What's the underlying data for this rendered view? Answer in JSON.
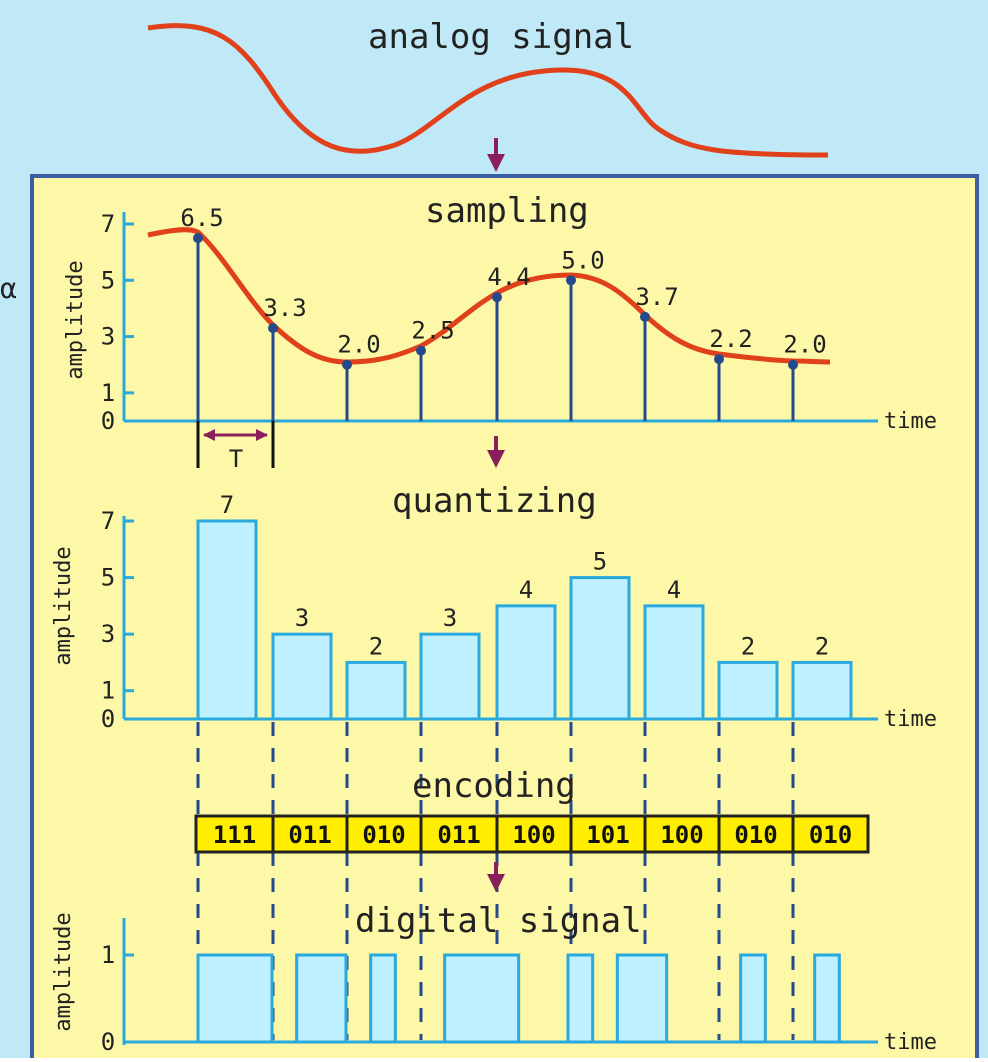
{
  "title_analog": "analog signal",
  "stray_glyph": "α",
  "colors": {
    "top_background": "#bfe9f6",
    "panel_background": "#fdf8a8",
    "panel_border": "#3a5fa5",
    "curve": "#e0401a",
    "stem": "#244a8c",
    "bar_fill": "#bff0ff",
    "bar_stroke": "#2aa9dc",
    "code_fill": "#ffee00",
    "arrow": "#8a1f5c"
  },
  "sampling": {
    "title": "sampling",
    "ylabel": "amplitude",
    "xlabel": "time",
    "yticks": [
      "7",
      "5",
      "3",
      "1",
      "0"
    ],
    "period_label": "T",
    "values": [
      "6.5",
      "3.3",
      "2.0",
      "2.5",
      "4.4",
      "5.0",
      "3.7",
      "2.2",
      "2.0"
    ]
  },
  "quantizing": {
    "title": "quantizing",
    "ylabel": "amplitude",
    "xlabel": "time",
    "yticks": [
      "7",
      "5",
      "3",
      "1",
      "0"
    ],
    "values": [
      "7",
      "3",
      "2",
      "3",
      "4",
      "5",
      "4",
      "2",
      "2"
    ]
  },
  "encoding": {
    "title": "encoding",
    "codes": [
      "111",
      "011",
      "010",
      "011",
      "100",
      "101",
      "100",
      "010",
      "010"
    ]
  },
  "digital": {
    "title": "digital signal",
    "ylabel": "amplitude",
    "xlabel": "time",
    "yticks": [
      "1",
      "0"
    ]
  },
  "chart_data": [
    {
      "type": "line",
      "title": "sampling",
      "xlabel": "time",
      "ylabel": "amplitude",
      "ylim": [
        0,
        7
      ],
      "yticks": [
        0,
        1,
        3,
        5,
        7
      ],
      "x": [
        1,
        2,
        3,
        4,
        5,
        6,
        7,
        8,
        9
      ],
      "values": [
        6.5,
        3.3,
        2.0,
        2.5,
        4.4,
        5.0,
        3.7,
        2.2,
        2.0
      ]
    },
    {
      "type": "bar",
      "title": "quantizing",
      "xlabel": "time",
      "ylabel": "amplitude",
      "ylim": [
        0,
        7
      ],
      "yticks": [
        0,
        1,
        3,
        5,
        7
      ],
      "values": [
        7,
        3,
        2,
        3,
        4,
        5,
        4,
        2,
        2
      ]
    },
    {
      "type": "table",
      "title": "encoding",
      "values": [
        "111",
        "011",
        "010",
        "011",
        "100",
        "101",
        "100",
        "010",
        "010"
      ]
    },
    {
      "type": "line",
      "title": "digital signal",
      "xlabel": "time",
      "ylabel": "amplitude",
      "ylim": [
        0,
        1
      ],
      "yticks": [
        0,
        1
      ],
      "values": [
        1,
        1,
        1,
        0,
        1,
        1,
        0,
        1,
        0,
        0,
        1,
        1,
        1,
        0,
        0,
        1,
        0,
        1,
        1,
        0,
        0,
        0,
        1,
        0,
        0,
        1,
        0
      ]
    }
  ]
}
